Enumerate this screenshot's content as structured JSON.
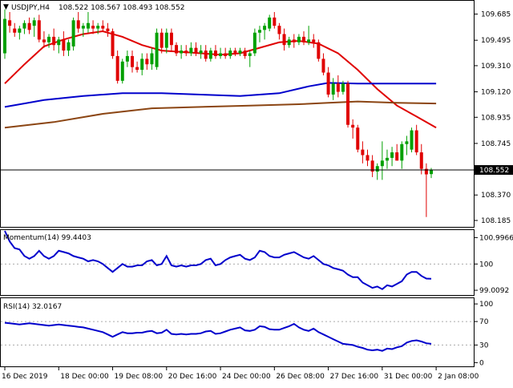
{
  "chart_data": [
    {
      "type": "candlestick",
      "title": "USDJPY,H4  108.522 108.567 108.493 108.552",
      "symbol_label": "USDJPY,H4",
      "ohlc_label": "108.522 108.567 108.493 108.552",
      "y_ticks": [
        109.685,
        109.495,
        109.31,
        109.12,
        108.935,
        108.745,
        108.37,
        108.185
      ],
      "ylim": [
        108.15,
        109.77
      ],
      "current_price": 108.552,
      "current_price_label": "108.552",
      "x_tick_labels": [
        "16 Dec 2019",
        "18 Dec 00:00",
        "19 Dec 08:00",
        "20 Dec 16:00",
        "24 Dec 00:00",
        "26 Dec 08:00",
        "27 Dec 16:00",
        "31 Dec 00:00",
        "2 Jan 08:00"
      ],
      "x_tick_positions": [
        0,
        11,
        22,
        33,
        44,
        55,
        66,
        77,
        88
      ],
      "bull_color": "#00a000",
      "bear_color": "#e00000",
      "candles": [
        {
          "o": 109.4,
          "h": 109.72,
          "l": 109.36,
          "c": 109.65
        },
        {
          "o": 109.64,
          "h": 109.7,
          "l": 109.55,
          "c": 109.6
        },
        {
          "o": 109.58,
          "h": 109.62,
          "l": 109.52,
          "c": 109.55
        },
        {
          "o": 109.55,
          "h": 109.6,
          "l": 109.5,
          "c": 109.58
        },
        {
          "o": 109.58,
          "h": 109.64,
          "l": 109.54,
          "c": 109.62
        },
        {
          "o": 109.62,
          "h": 109.66,
          "l": 109.54,
          "c": 109.57
        },
        {
          "o": 109.6,
          "h": 109.66,
          "l": 109.52,
          "c": 109.64
        },
        {
          "o": 109.64,
          "h": 109.68,
          "l": 109.48,
          "c": 109.5
        },
        {
          "o": 109.5,
          "h": 109.56,
          "l": 109.44,
          "c": 109.48
        },
        {
          "o": 109.48,
          "h": 109.54,
          "l": 109.44,
          "c": 109.52
        },
        {
          "o": 109.52,
          "h": 109.58,
          "l": 109.42,
          "c": 109.46
        },
        {
          "o": 109.46,
          "h": 109.52,
          "l": 109.4,
          "c": 109.5
        },
        {
          "o": 109.5,
          "h": 109.56,
          "l": 109.38,
          "c": 109.42
        },
        {
          "o": 109.42,
          "h": 109.5,
          "l": 109.38,
          "c": 109.48
        },
        {
          "o": 109.45,
          "h": 109.66,
          "l": 109.42,
          "c": 109.64
        },
        {
          "o": 109.64,
          "h": 109.7,
          "l": 109.55,
          "c": 109.58
        },
        {
          "o": 109.58,
          "h": 109.62,
          "l": 109.52,
          "c": 109.6
        },
        {
          "o": 109.58,
          "h": 109.7,
          "l": 109.55,
          "c": 109.62
        },
        {
          "o": 109.6,
          "h": 109.64,
          "l": 109.54,
          "c": 109.58
        },
        {
          "o": 109.58,
          "h": 109.62,
          "l": 109.54,
          "c": 109.6
        },
        {
          "o": 109.6,
          "h": 109.64,
          "l": 109.56,
          "c": 109.58
        },
        {
          "o": 109.58,
          "h": 109.62,
          "l": 109.52,
          "c": 109.56
        },
        {
          "o": 109.56,
          "h": 109.58,
          "l": 109.36,
          "c": 109.38
        },
        {
          "o": 109.38,
          "h": 109.42,
          "l": 109.18,
          "c": 109.2
        },
        {
          "o": 109.2,
          "h": 109.36,
          "l": 109.18,
          "c": 109.34
        },
        {
          "o": 109.34,
          "h": 109.42,
          "l": 109.3,
          "c": 109.38
        },
        {
          "o": 109.38,
          "h": 109.42,
          "l": 109.26,
          "c": 109.3
        },
        {
          "o": 109.3,
          "h": 109.34,
          "l": 109.26,
          "c": 109.28
        },
        {
          "o": 109.28,
          "h": 109.4,
          "l": 109.24,
          "c": 109.36
        },
        {
          "o": 109.36,
          "h": 109.4,
          "l": 109.28,
          "c": 109.32
        },
        {
          "o": 109.32,
          "h": 109.44,
          "l": 109.28,
          "c": 109.4
        },
        {
          "o": 109.3,
          "h": 109.58,
          "l": 109.28,
          "c": 109.55
        },
        {
          "o": 109.55,
          "h": 109.58,
          "l": 109.4,
          "c": 109.44
        },
        {
          "o": 109.44,
          "h": 109.58,
          "l": 109.4,
          "c": 109.55
        },
        {
          "o": 109.55,
          "h": 109.58,
          "l": 109.42,
          "c": 109.46
        },
        {
          "o": 109.46,
          "h": 109.48,
          "l": 109.38,
          "c": 109.4
        },
        {
          "o": 109.4,
          "h": 109.46,
          "l": 109.36,
          "c": 109.42
        },
        {
          "o": 109.42,
          "h": 109.46,
          "l": 109.38,
          "c": 109.4
        },
        {
          "o": 109.4,
          "h": 109.48,
          "l": 109.38,
          "c": 109.44
        },
        {
          "o": 109.44,
          "h": 109.48,
          "l": 109.38,
          "c": 109.4
        },
        {
          "o": 109.4,
          "h": 109.46,
          "l": 109.36,
          "c": 109.42
        },
        {
          "o": 109.42,
          "h": 109.46,
          "l": 109.34,
          "c": 109.36
        },
        {
          "o": 109.36,
          "h": 109.44,
          "l": 109.34,
          "c": 109.42
        },
        {
          "o": 109.42,
          "h": 109.46,
          "l": 109.36,
          "c": 109.38
        },
        {
          "o": 109.38,
          "h": 109.44,
          "l": 109.36,
          "c": 109.4
        },
        {
          "o": 109.4,
          "h": 109.44,
          "l": 109.36,
          "c": 109.38
        },
        {
          "o": 109.38,
          "h": 109.44,
          "l": 109.36,
          "c": 109.42
        },
        {
          "o": 109.42,
          "h": 109.44,
          "l": 109.38,
          "c": 109.4
        },
        {
          "o": 109.4,
          "h": 109.44,
          "l": 109.38,
          "c": 109.42
        },
        {
          "o": 109.42,
          "h": 109.44,
          "l": 109.36,
          "c": 109.38
        },
        {
          "o": 109.38,
          "h": 109.42,
          "l": 109.3,
          "c": 109.4
        },
        {
          "o": 109.4,
          "h": 109.58,
          "l": 109.38,
          "c": 109.55
        },
        {
          "o": 109.55,
          "h": 109.6,
          "l": 109.48,
          "c": 109.57
        },
        {
          "o": 109.57,
          "h": 109.62,
          "l": 109.5,
          "c": 109.6
        },
        {
          "o": 109.58,
          "h": 109.68,
          "l": 109.56,
          "c": 109.66
        },
        {
          "o": 109.66,
          "h": 109.7,
          "l": 109.58,
          "c": 109.6
        },
        {
          "o": 109.6,
          "h": 109.62,
          "l": 109.5,
          "c": 109.54
        },
        {
          "o": 109.54,
          "h": 109.58,
          "l": 109.42,
          "c": 109.46
        },
        {
          "o": 109.46,
          "h": 109.52,
          "l": 109.44,
          "c": 109.5
        },
        {
          "o": 109.5,
          "h": 109.54,
          "l": 109.44,
          "c": 109.48
        },
        {
          "o": 109.48,
          "h": 109.54,
          "l": 109.46,
          "c": 109.52
        },
        {
          "o": 109.52,
          "h": 109.56,
          "l": 109.46,
          "c": 109.48
        },
        {
          "o": 109.48,
          "h": 109.6,
          "l": 109.46,
          "c": 109.5
        },
        {
          "o": 109.5,
          "h": 109.54,
          "l": 109.44,
          "c": 109.48
        },
        {
          "o": 109.48,
          "h": 109.5,
          "l": 109.34,
          "c": 109.36
        },
        {
          "o": 109.36,
          "h": 109.4,
          "l": 109.24,
          "c": 109.26
        },
        {
          "o": 109.26,
          "h": 109.3,
          "l": 109.08,
          "c": 109.1
        },
        {
          "o": 109.1,
          "h": 109.22,
          "l": 109.06,
          "c": 109.18
        },
        {
          "o": 109.18,
          "h": 109.24,
          "l": 109.08,
          "c": 109.12
        },
        {
          "o": 109.12,
          "h": 109.2,
          "l": 109.1,
          "c": 109.18
        },
        {
          "o": 109.18,
          "h": 109.2,
          "l": 108.86,
          "c": 108.88
        },
        {
          "o": 108.88,
          "h": 108.92,
          "l": 108.78,
          "c": 108.86
        },
        {
          "o": 108.86,
          "h": 108.88,
          "l": 108.68,
          "c": 108.7
        },
        {
          "o": 108.7,
          "h": 108.76,
          "l": 108.6,
          "c": 108.66
        },
        {
          "o": 108.66,
          "h": 108.7,
          "l": 108.58,
          "c": 108.62
        },
        {
          "o": 108.62,
          "h": 108.66,
          "l": 108.5,
          "c": 108.54
        },
        {
          "o": 108.54,
          "h": 108.6,
          "l": 108.48,
          "c": 108.58
        },
        {
          "o": 108.58,
          "h": 108.76,
          "l": 108.48,
          "c": 108.62
        },
        {
          "o": 108.62,
          "h": 108.7,
          "l": 108.56,
          "c": 108.64
        },
        {
          "o": 108.64,
          "h": 108.72,
          "l": 108.58,
          "c": 108.68
        },
        {
          "o": 108.68,
          "h": 108.74,
          "l": 108.62,
          "c": 108.62
        },
        {
          "o": 108.62,
          "h": 108.76,
          "l": 108.56,
          "c": 108.74
        },
        {
          "o": 108.74,
          "h": 108.8,
          "l": 108.66,
          "c": 108.76
        },
        {
          "o": 108.7,
          "h": 108.86,
          "l": 108.68,
          "c": 108.84
        },
        {
          "o": 108.84,
          "h": 108.88,
          "l": 108.66,
          "c": 108.68
        },
        {
          "o": 108.68,
          "h": 108.74,
          "l": 108.52,
          "c": 108.56
        },
        {
          "o": 108.56,
          "h": 108.6,
          "l": 108.21,
          "c": 108.52
        },
        {
          "o": 108.522,
          "h": 108.567,
          "l": 108.493,
          "c": 108.552
        }
      ],
      "moving_averages": [
        {
          "color": "#e00000",
          "points": [
            [
              0,
              109.18
            ],
            [
              4,
              109.32
            ],
            [
              8,
              109.45
            ],
            [
              12,
              109.5
            ],
            [
              16,
              109.54
            ],
            [
              20,
              109.56
            ],
            [
              24,
              109.52
            ],
            [
              28,
              109.46
            ],
            [
              32,
              109.42
            ],
            [
              36,
              109.41
            ],
            [
              40,
              109.4
            ],
            [
              44,
              109.39
            ],
            [
              48,
              109.4
            ],
            [
              52,
              109.44
            ],
            [
              56,
              109.48
            ],
            [
              60,
              109.49
            ],
            [
              64,
              109.47
            ],
            [
              68,
              109.4
            ],
            [
              72,
              109.28
            ],
            [
              76,
              109.14
            ],
            [
              80,
              109.02
            ],
            [
              84,
              108.94
            ],
            [
              88,
              108.86
            ]
          ]
        },
        {
          "color": "#0000cc",
          "points": [
            [
              0,
              109.01
            ],
            [
              8,
              109.06
            ],
            [
              16,
              109.09
            ],
            [
              24,
              109.11
            ],
            [
              32,
              109.11
            ],
            [
              40,
              109.1
            ],
            [
              48,
              109.09
            ],
            [
              56,
              109.11
            ],
            [
              62,
              109.16
            ],
            [
              66,
              109.185
            ],
            [
              72,
              109.18
            ],
            [
              80,
              109.18
            ],
            [
              88,
              109.18
            ]
          ]
        },
        {
          "color": "#8b4513",
          "points": [
            [
              0,
              108.86
            ],
            [
              10,
              108.9
            ],
            [
              20,
              108.96
            ],
            [
              30,
              109.0
            ],
            [
              40,
              109.01
            ],
            [
              50,
              109.02
            ],
            [
              60,
              109.03
            ],
            [
              66,
              109.04
            ],
            [
              72,
              109.05
            ],
            [
              80,
              109.04
            ],
            [
              88,
              109.035
            ]
          ]
        }
      ]
    },
    {
      "type": "line",
      "title": "Momentum(14) 99.4403",
      "y_ticks_labels": [
        "100.9966",
        "100",
        "99.0092"
      ],
      "y_ticks": [
        100.9966,
        100.0,
        99.0092
      ],
      "ylim": [
        98.86,
        101.22
      ],
      "reference_lines": [
        100.0
      ],
      "color": "#0000cc",
      "values": [
        101.25,
        100.85,
        100.6,
        100.55,
        100.3,
        100.2,
        100.3,
        100.5,
        100.3,
        100.2,
        100.3,
        100.5,
        100.45,
        100.4,
        100.3,
        100.25,
        100.2,
        100.1,
        100.15,
        100.1,
        100.0,
        99.85,
        99.7,
        99.85,
        100.0,
        99.9,
        99.9,
        99.95,
        99.95,
        100.1,
        100.15,
        99.95,
        100.0,
        100.3,
        99.95,
        99.9,
        99.95,
        99.9,
        99.95,
        99.95,
        100.0,
        100.15,
        100.2,
        99.95,
        100.0,
        100.15,
        100.25,
        100.3,
        100.35,
        100.2,
        100.15,
        100.25,
        100.5,
        100.45,
        100.3,
        100.25,
        100.25,
        100.35,
        100.4,
        100.45,
        100.35,
        100.25,
        100.2,
        100.3,
        100.15,
        100.0,
        99.95,
        99.85,
        99.8,
        99.75,
        99.6,
        99.5,
        99.5,
        99.3,
        99.2,
        99.1,
        99.15,
        99.05,
        99.2,
        99.15,
        99.25,
        99.35,
        99.6,
        99.7,
        99.7,
        99.55,
        99.45,
        99.44
      ]
    },
    {
      "type": "line",
      "title": "RSI(14) 32.0167",
      "y_ticks": [
        100,
        70,
        30,
        0
      ],
      "ylim": [
        -5,
        107
      ],
      "reference_lines": [
        70,
        30
      ],
      "color": "#0000cc",
      "values": [
        68,
        67,
        66,
        65,
        66,
        67,
        66,
        65,
        64,
        63,
        64,
        65,
        64,
        63,
        62,
        61,
        60,
        58,
        56,
        54,
        52,
        48,
        44,
        48,
        52,
        50,
        50,
        51,
        51,
        53,
        54,
        50,
        51,
        56,
        49,
        48,
        49,
        48,
        49,
        49,
        50,
        53,
        54,
        49,
        50,
        53,
        56,
        58,
        60,
        55,
        54,
        56,
        62,
        61,
        57,
        56,
        56,
        59,
        62,
        66,
        60,
        56,
        54,
        58,
        52,
        48,
        44,
        40,
        36,
        32,
        31,
        30,
        27,
        25,
        22,
        21,
        22,
        20,
        24,
        23,
        26,
        28,
        34,
        37,
        38,
        36,
        33,
        32
      ]
    }
  ]
}
